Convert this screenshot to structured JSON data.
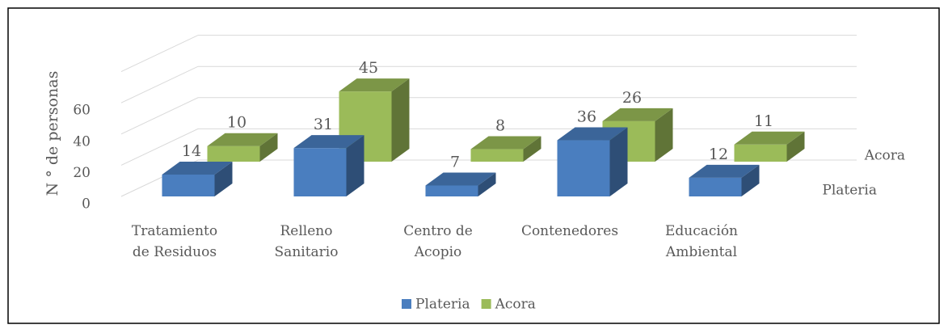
{
  "chart_data": {
    "type": "bar3d",
    "y_label": "N ° de personas",
    "categories": [
      "Tratamiento\nde Residuos",
      "Relleno\nSanitario",
      "Centro de\nAcopio",
      "Contenedores",
      "Educación\nAmbiental"
    ],
    "series": [
      {
        "name": "Plateria",
        "color": "#4a7ebf",
        "values": [
          14,
          31,
          7,
          36,
          12
        ]
      },
      {
        "name": "Acora",
        "color": "#9bbb59",
        "values": [
          10,
          45,
          8,
          26,
          11
        ]
      }
    ],
    "ylim": [
      0,
      80
    ],
    "yticks": [
      0,
      20,
      40,
      60
    ],
    "grid": true,
    "legend": "bottom"
  }
}
